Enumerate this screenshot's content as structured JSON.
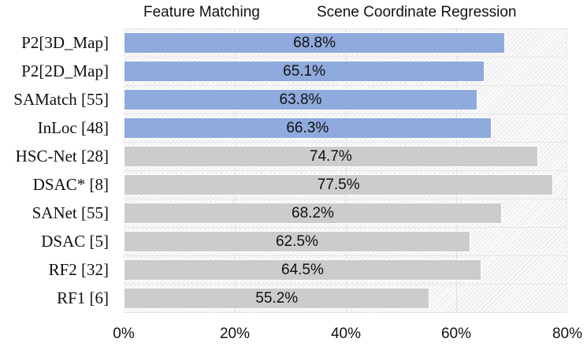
{
  "chart_data": {
    "type": "bar",
    "orientation": "horizontal",
    "title": "",
    "legend": [
      "Feature Matching",
      "Scene Coordinate Regression"
    ],
    "legend_position": "top",
    "categories": [
      "P2[3D_Map]",
      "P2[2D_Map]",
      "SAMatch [55]",
      "InLoc [48]",
      "HSC-Net [28]",
      "DSAC* [8]",
      "SANet [55]",
      "DSAC [5]",
      "RF2 [32]",
      "RF1 [6]"
    ],
    "values": [
      68.8,
      65.1,
      63.8,
      66.3,
      74.7,
      77.5,
      68.2,
      62.5,
      64.5,
      55.2
    ],
    "value_labels": [
      "68.8%",
      "65.1%",
      "63.8%",
      "66.3%",
      "74.7%",
      "77.5%",
      "68.2%",
      "62.5%",
      "64.5%",
      "55.2%"
    ],
    "groups": [
      "Feature Matching",
      "Feature Matching",
      "Feature Matching",
      "Feature Matching",
      "Scene Coordinate Regression",
      "Scene Coordinate Regression",
      "Scene Coordinate Regression",
      "Scene Coordinate Regression",
      "Scene Coordinate Regression",
      "Scene Coordinate Regression"
    ],
    "series": [
      {
        "name": "Feature Matching",
        "color": "#8faadc",
        "categories": [
          "P2[3D_Map]",
          "P2[2D_Map]",
          "SAMatch [55]",
          "InLoc [48]"
        ],
        "values": [
          68.8,
          65.1,
          63.8,
          66.3
        ]
      },
      {
        "name": "Scene Coordinate Regression",
        "color": "#cdcbcb",
        "categories": [
          "HSC-Net [28]",
          "DSAC* [8]",
          "SANet [55]",
          "DSAC [5]",
          "RF2 [32]",
          "RF1 [6]"
        ],
        "values": [
          74.7,
          77.5,
          68.2,
          62.5,
          64.5,
          55.2
        ]
      }
    ],
    "xlabel": "",
    "ylabel": "",
    "xlim": [
      0,
      80
    ],
    "xticks": [
      "0%",
      "20%",
      "40%",
      "60%",
      "80%"
    ],
    "grid": true
  },
  "colors": {
    "feature_matching": "#8faadc",
    "scene_coordinate_regression": "#cdcbcb"
  }
}
